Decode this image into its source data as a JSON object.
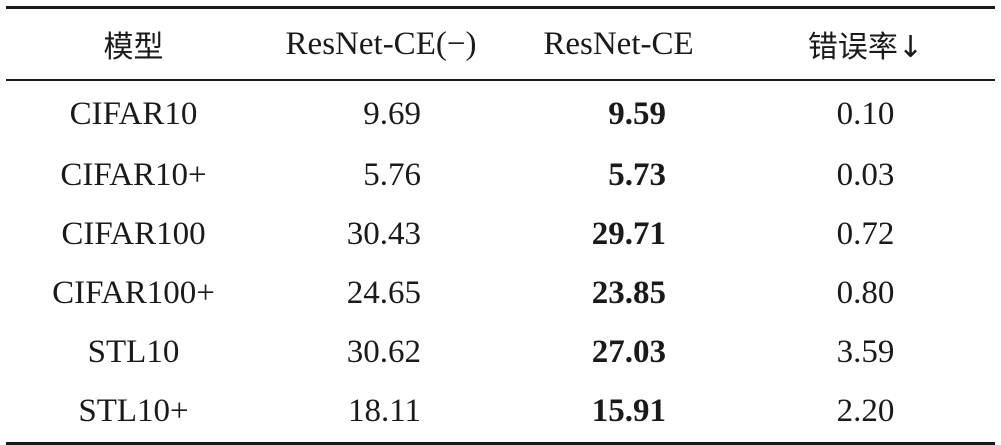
{
  "table": {
    "headers": [
      "模型",
      "ResNet-CE(−)",
      "ResNet-CE",
      "错误率↓"
    ],
    "rows": [
      {
        "model": "CIFAR10",
        "resnet_ce_minus": "9.69",
        "resnet_ce": "9.59",
        "error_drop": "0.10"
      },
      {
        "model": "CIFAR10+",
        "resnet_ce_minus": "5.76",
        "resnet_ce": "5.73",
        "error_drop": "0.03"
      },
      {
        "model": "CIFAR100",
        "resnet_ce_minus": "30.43",
        "resnet_ce": "29.71",
        "error_drop": "0.72"
      },
      {
        "model": "CIFAR100+",
        "resnet_ce_minus": "24.65",
        "resnet_ce": "23.85",
        "error_drop": "0.80"
      },
      {
        "model": "STL10",
        "resnet_ce_minus": "30.62",
        "resnet_ce": "27.03",
        "error_drop": "3.59"
      },
      {
        "model": "STL10+",
        "resnet_ce_minus": "18.11",
        "resnet_ce": "15.91",
        "error_drop": "2.20"
      }
    ]
  }
}
